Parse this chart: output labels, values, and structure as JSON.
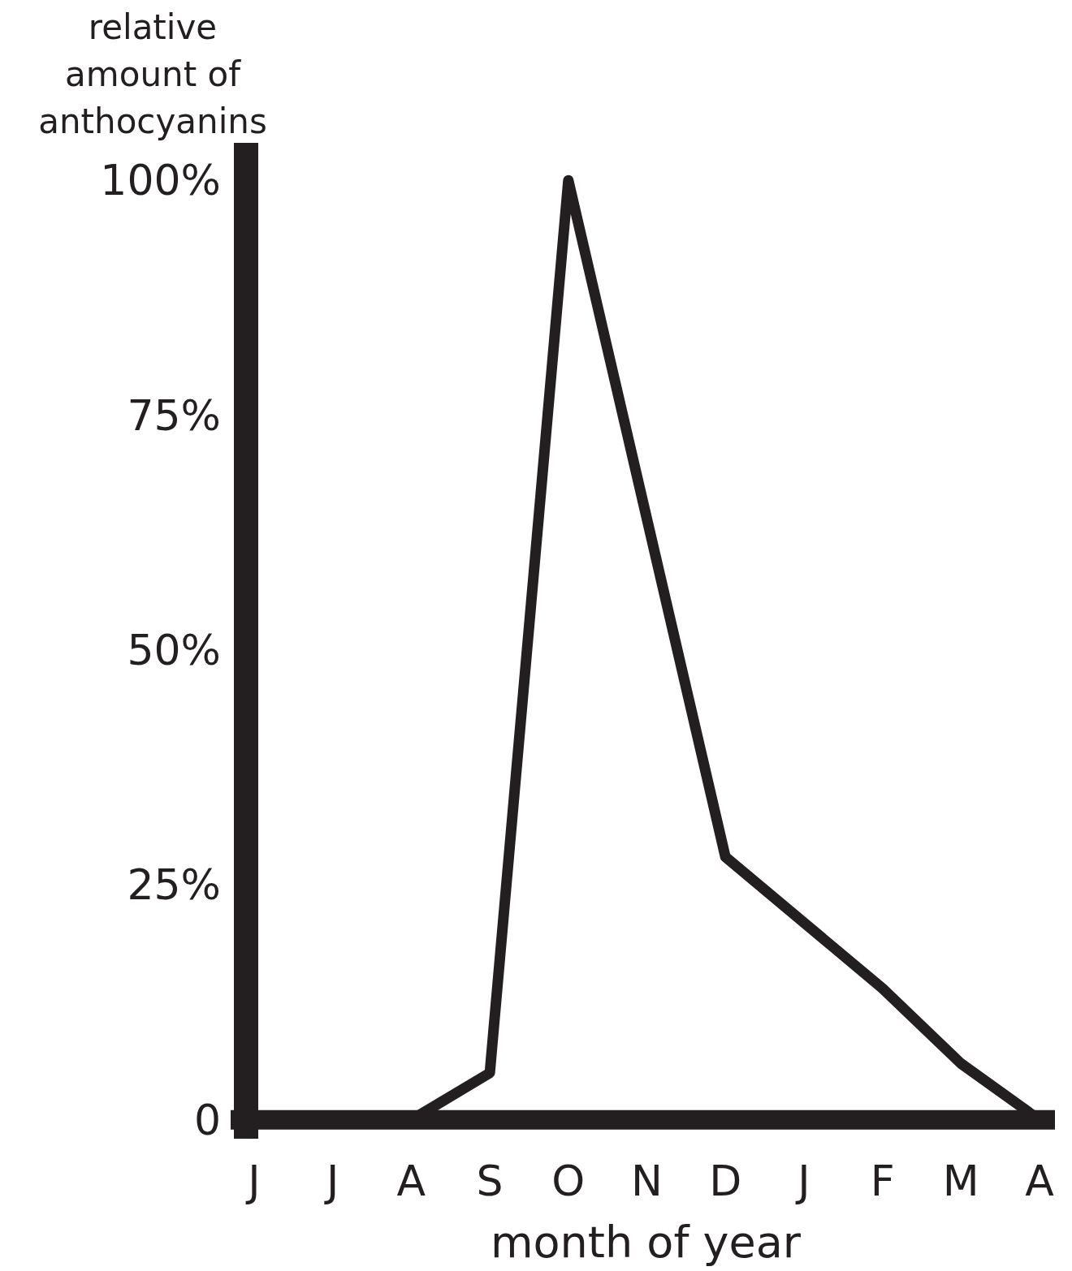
{
  "chart_data": {
    "type": "line",
    "xlabel": "month of year",
    "ylabel": "relative amount of anthocyanins",
    "categories": [
      "J",
      "J",
      "A",
      "S",
      "O",
      "N",
      "D",
      "J",
      "F",
      "M",
      "A"
    ],
    "series": [
      {
        "color": "#231f20",
        "values": [
          null,
          null,
          0,
          5,
          100,
          64,
          28,
          21,
          14,
          6,
          0
        ]
      }
    ],
    "ylim": [
      -2,
      104
    ],
    "yticks": [
      {
        "value": 0,
        "label": "0"
      },
      {
        "value": 25,
        "label": "25%"
      },
      {
        "value": 50,
        "label": "50%"
      },
      {
        "value": 75,
        "label": "75%"
      },
      {
        "value": 100,
        "label": "100%"
      }
    ],
    "grid": false,
    "marker": "none",
    "line_style": "solid"
  }
}
